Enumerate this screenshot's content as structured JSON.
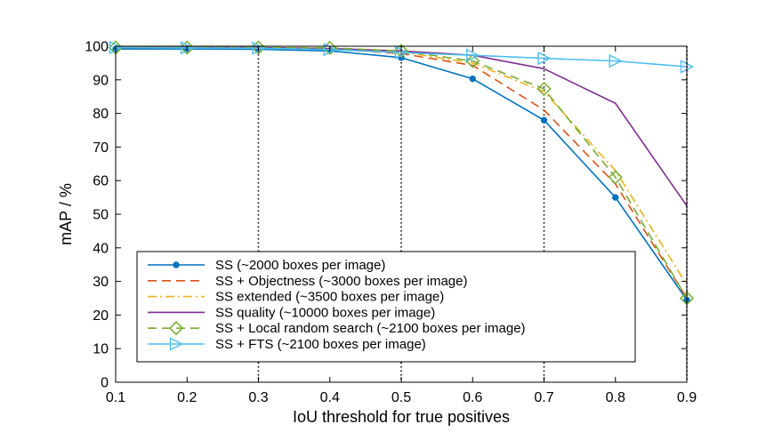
{
  "chart_data": {
    "type": "line",
    "xlabel": "IoU threshold for true positives",
    "ylabel": "mAP / %",
    "xlim": [
      0.1,
      0.9
    ],
    "ylim": [
      0,
      100
    ],
    "x": [
      0.1,
      0.2,
      0.3,
      0.4,
      0.5,
      0.6,
      0.7,
      0.8,
      0.9
    ],
    "x_tick_labels": [
      "0.1",
      "0.2",
      "0.3",
      "0.4",
      "0.5",
      "0.6",
      "0.7",
      "0.8",
      "0.9"
    ],
    "y_tick_labels": [
      "0",
      "10",
      "20",
      "30",
      "40",
      "50",
      "60",
      "70",
      "80",
      "90",
      "100"
    ],
    "y_ticks": [
      0,
      10,
      20,
      30,
      40,
      50,
      60,
      70,
      80,
      90,
      100
    ],
    "vertical_grid_at": [
      0.3,
      0.5,
      0.7,
      0.9
    ],
    "grid": "dotted vertical lines at 0.3, 0.5, 0.7, 0.9",
    "legend_position": "bottom-left",
    "series": [
      {
        "name": "SS (~2000 boxes per image)",
        "color": "#0072BD",
        "dash": "solid",
        "marker": "dot",
        "values": [
          99.2,
          99.2,
          99.1,
          98.6,
          96.6,
          90.3,
          78.0,
          55.0,
          24.5
        ]
      },
      {
        "name": "SS + Objectness  (~3000 boxes per image)",
        "color": "#D95319",
        "dash": "dashed",
        "marker": "none",
        "values": [
          99.6,
          99.6,
          99.5,
          99.2,
          97.8,
          94.3,
          81.0,
          59.0,
          25.0
        ]
      },
      {
        "name": "SS extended (~3500 boxes per image)",
        "color": "#EDB120",
        "dash": "dashdot",
        "marker": "none",
        "values": [
          99.7,
          99.7,
          99.6,
          99.4,
          98.3,
          95.0,
          86.5,
          63.0,
          29.0
        ]
      },
      {
        "name": "SS quality (~10000 boxes per image)",
        "color": "#7E2F8E",
        "dash": "solid",
        "marker": "none",
        "values": [
          99.6,
          99.6,
          99.6,
          99.3,
          98.6,
          97.3,
          93.3,
          83.0,
          52.5
        ]
      },
      {
        "name": "SS + Local random search (~2100 boxes per image)",
        "color": "#77AC30",
        "dash": "dashed",
        "marker": "diamond",
        "values": [
          99.6,
          99.6,
          99.6,
          99.5,
          98.6,
          95.6,
          87.3,
          61.0,
          25.0
        ]
      },
      {
        "name": "SS + FTS (~2100 boxes per image)",
        "color": "#4DBEEE",
        "dash": "solid",
        "marker": "triangle-right",
        "values": [
          99.6,
          99.5,
          99.4,
          99.0,
          98.1,
          97.3,
          96.4,
          95.6,
          93.9
        ]
      }
    ]
  }
}
